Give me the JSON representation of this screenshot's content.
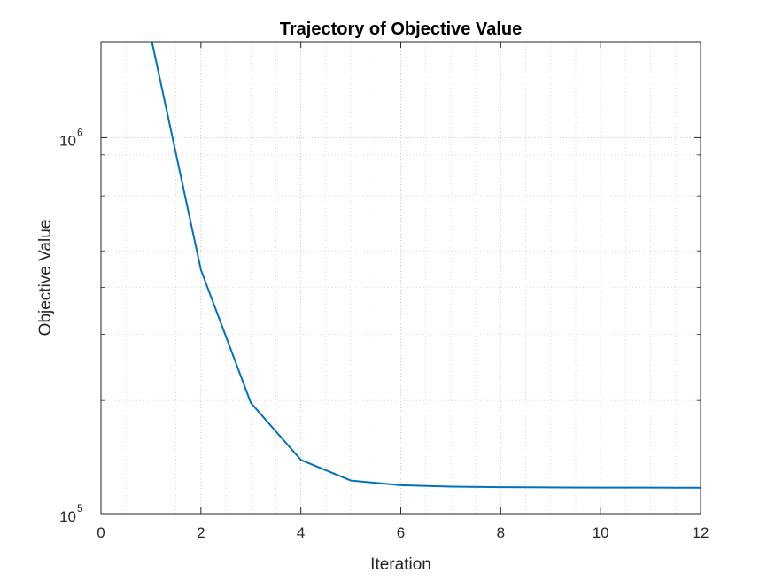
{
  "chart_data": {
    "type": "line",
    "title": "Trajectory of Objective Value",
    "xlabel": "Iteration",
    "ylabel": "Objective Value",
    "xlim": [
      0,
      12
    ],
    "ylim": [
      100000,
      1800000
    ],
    "yscale": "log",
    "grid": true,
    "minor_grid": true,
    "x_ticks": [
      "0",
      "2",
      "4",
      "6",
      "8",
      "10",
      "12"
    ],
    "y_ticks": [
      {
        "base": "10",
        "exp": "5",
        "value": 100000
      },
      {
        "base": "10",
        "exp": "6",
        "value": 1000000
      }
    ],
    "series": [
      {
        "color": "#0072BD",
        "x": [
          1,
          2,
          3,
          4,
          5,
          6,
          7,
          8,
          9,
          10,
          11,
          12
        ],
        "y": [
          1850000,
          445000,
          197000,
          139000,
          122500,
          119000,
          118000,
          117600,
          117400,
          117300,
          117250,
          117200
        ]
      }
    ]
  }
}
